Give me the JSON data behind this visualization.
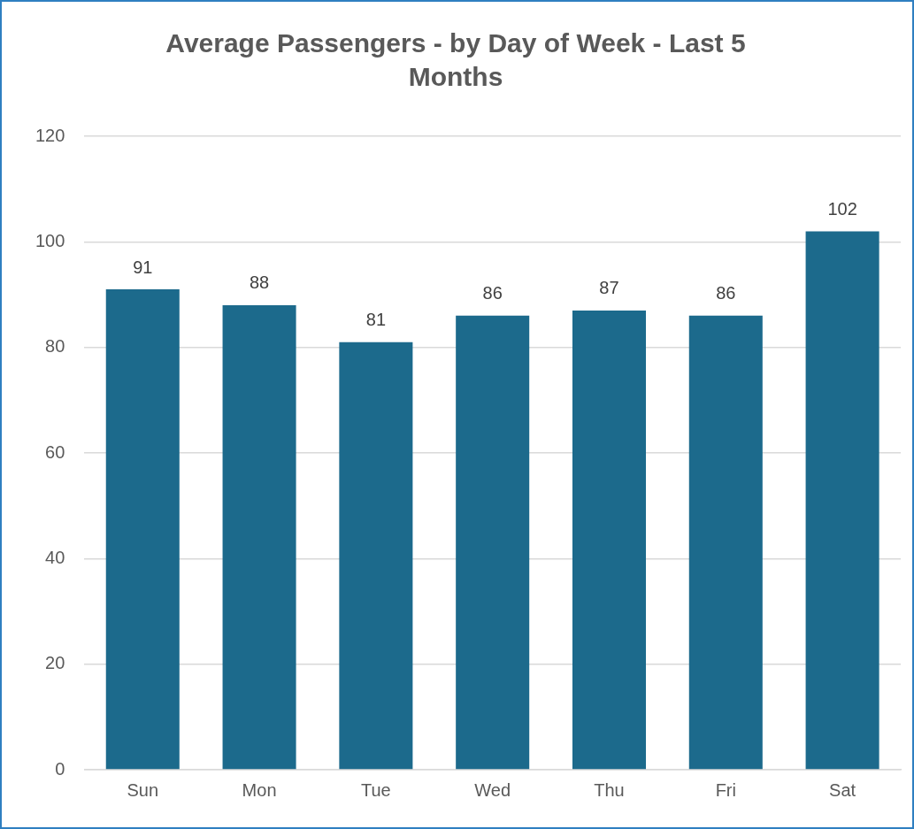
{
  "chart_data": {
    "type": "bar",
    "title": "Average Passengers - by Day of Week - Last 5 Months",
    "categories": [
      "Sun",
      "Mon",
      "Tue",
      "Wed",
      "Thu",
      "Fri",
      "Sat"
    ],
    "values": [
      91,
      88,
      81,
      86,
      87,
      86,
      102
    ],
    "color": "#1c6a8c",
    "ylim": [
      0,
      120
    ],
    "yticks": [
      0,
      20,
      40,
      60,
      80,
      100,
      120
    ],
    "grid": "y",
    "data_labels": true
  }
}
